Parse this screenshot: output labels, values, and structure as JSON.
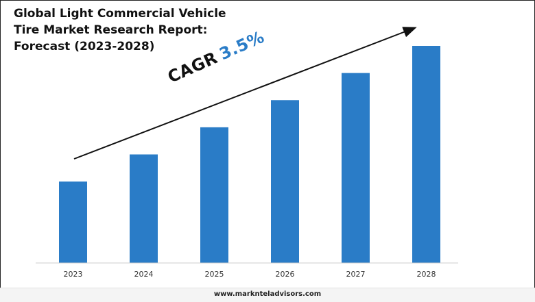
{
  "title": {
    "line1": "Global Light Commercial Vehicle",
    "line2": "Tire Market Research Report:",
    "line3": "Forecast (2023-2028)"
  },
  "cagr": {
    "label": "CAGR",
    "value": "3.5%"
  },
  "website": "www.marknteladvisors.com",
  "colors": {
    "bar": "#2a7cc7",
    "axis": "#cccccc",
    "text": "#111111",
    "accent": "#2a7cc7"
  },
  "chart_data": {
    "type": "bar",
    "title": "Global Light Commercial Vehicle Tire Market Research Report: Forecast (2023-2028)",
    "categories": [
      "2023",
      "2024",
      "2025",
      "2026",
      "2027",
      "2028"
    ],
    "values": [
      30,
      40,
      50,
      60,
      70,
      80
    ],
    "ylim": [
      0,
      80
    ],
    "xlabel": "",
    "ylabel": "",
    "value_note": "relative bar heights; no y-axis shown"
  }
}
